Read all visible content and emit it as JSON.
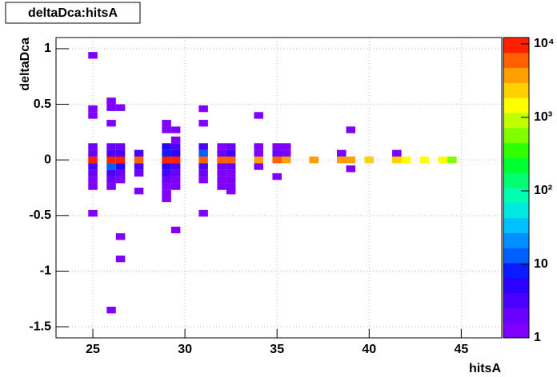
{
  "chart_data": {
    "type": "heatmap",
    "title": "deltaDca:hitsA",
    "x_label": "hitsA",
    "y_label": "deltaDca",
    "xlim": [
      23,
      47.2
    ],
    "ylim": [
      -1.6,
      1.1
    ],
    "xticks": [
      25,
      30,
      35,
      40,
      45
    ],
    "yticks": [
      1,
      0.5,
      0,
      -0.5,
      -1,
      -1.5
    ],
    "zlim": [
      1,
      12200
    ],
    "zscale": "log",
    "zticks": [
      1,
      10,
      {
        "value": 100,
        "label": "10²"
      },
      {
        "value": 1000,
        "label": "10³"
      },
      {
        "value": 10000,
        "label": "10⁴"
      }
    ],
    "grid": true,
    "palette": [
      "#7f00ff",
      "#6a00ff",
      "#4a00ff",
      "#2a00ff",
      "#0a1cff",
      "#0060ff",
      "#0090ff",
      "#00c0ff",
      "#00e8e0",
      "#00ffb0",
      "#00ff70",
      "#00ff30",
      "#30ff00",
      "#80ff00",
      "#c0ff00",
      "#ffff00",
      "#ffd000",
      "#ffa000",
      "#ff6000",
      "#ff2000"
    ],
    "x": [
      25,
      25,
      25,
      25,
      25,
      25,
      25,
      25,
      25,
      25,
      25,
      26,
      26,
      26,
      26,
      26,
      26,
      26,
      26,
      26,
      26,
      26,
      26.5,
      26.5,
      26.5,
      26.5,
      26.5,
      26.5,
      26.5,
      26.5,
      26.5,
      27.5,
      27.5,
      27.5,
      27.5,
      27.5,
      29,
      29,
      29,
      29,
      29,
      29,
      29,
      29,
      29,
      29,
      29,
      29.5,
      29.5,
      29.5,
      29.5,
      29.5,
      29.5,
      29.5,
      29.5,
      29.5,
      29.5,
      31,
      31,
      31,
      31,
      31,
      31,
      31,
      31,
      31,
      32,
      32,
      32,
      32,
      32,
      32,
      32,
      32.5,
      32.5,
      32.5,
      32.5,
      32.5,
      32.5,
      32.5,
      32.5,
      34,
      34,
      34,
      34,
      34,
      35,
      35,
      35,
      35,
      35.5,
      35.5,
      35.5,
      37,
      38.5,
      38.5,
      39,
      39,
      39,
      40,
      41.5,
      41.5,
      42,
      43,
      44,
      44.5
    ],
    "y": [
      0.94,
      0.46,
      0.4,
      0.12,
      0.06,
      0,
      -0.06,
      -0.12,
      -0.18,
      -0.24,
      -0.48,
      0.53,
      0.47,
      0.33,
      0.12,
      0.06,
      0,
      -0.06,
      -0.12,
      -0.18,
      -0.24,
      -1.35,
      0.47,
      0.12,
      0.06,
      0,
      -0.06,
      -0.12,
      -0.18,
      -0.69,
      -0.89,
      0.06,
      0,
      -0.06,
      -0.12,
      -0.28,
      0.33,
      0.27,
      0.12,
      0.06,
      0,
      -0.06,
      -0.12,
      -0.18,
      -0.24,
      -0.3,
      -0.35,
      0.27,
      0.18,
      0.12,
      0.06,
      0,
      -0.06,
      -0.12,
      -0.18,
      -0.24,
      -0.63,
      0.46,
      0.33,
      0.12,
      0.06,
      0,
      -0.06,
      -0.12,
      -0.18,
      -0.48,
      0.12,
      0.06,
      0,
      -0.06,
      -0.12,
      -0.18,
      -0.24,
      0.12,
      0.06,
      0,
      -0.06,
      -0.12,
      -0.18,
      -0.24,
      -0.28,
      0.4,
      0.12,
      0.06,
      0,
      -0.06,
      0.12,
      0.06,
      0,
      -0.15,
      0.12,
      0.06,
      0,
      0,
      0.06,
      0,
      0.27,
      0,
      -0.08,
      0,
      0.06,
      0,
      0,
      0,
      0,
      0
    ],
    "values": [
      1,
      1,
      1,
      2,
      2,
      8000,
      3,
      2,
      1,
      1,
      1,
      1,
      1,
      1,
      2,
      3,
      10000,
      15,
      3,
      2,
      1,
      1,
      1,
      2,
      4,
      9000,
      5,
      2,
      1,
      1,
      1,
      4,
      6000,
      3,
      2,
      1,
      1,
      1,
      5,
      10,
      10000,
      5,
      3,
      2,
      1,
      1,
      1,
      1,
      1,
      3,
      6,
      9000,
      4,
      2,
      1,
      1,
      1,
      1,
      1,
      3,
      12,
      7000,
      3,
      2,
      1,
      1,
      1,
      2,
      6000,
      2,
      1,
      1,
      1,
      2,
      3,
      5000,
      2,
      1,
      1,
      1,
      1,
      1,
      1,
      1,
      4000,
      1,
      1,
      2,
      5000,
      1,
      1,
      1,
      4000,
      3500,
      1,
      3500,
      1,
      3000,
      1,
      2500,
      1,
      2000,
      1800,
      1500,
      1200,
      700
    ]
  }
}
